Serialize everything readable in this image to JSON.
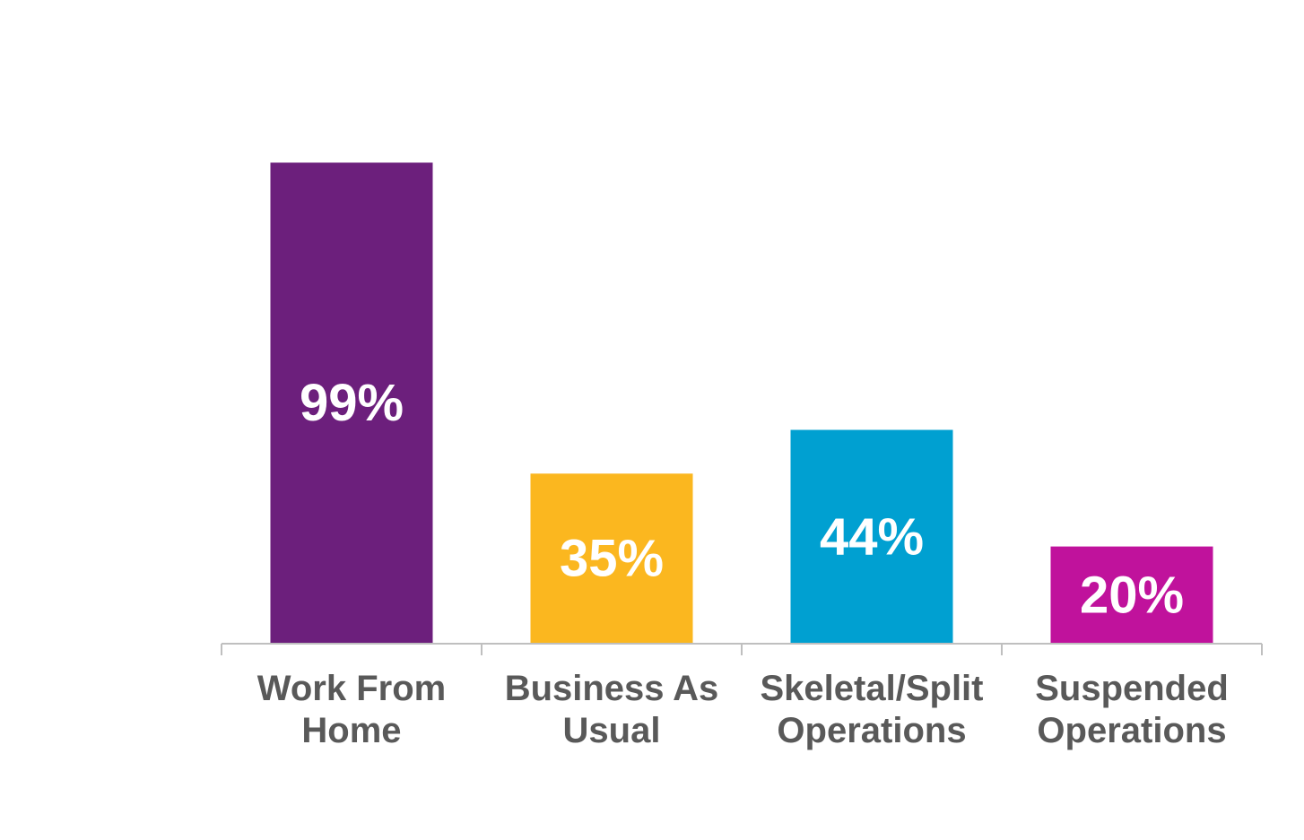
{
  "chart_data": {
    "type": "bar",
    "categories": [
      [
        "Work From",
        "Home"
      ],
      [
        "Business As",
        "Usual"
      ],
      [
        "Skeletal/Split",
        "Operations"
      ],
      [
        "Suspended",
        "Operations"
      ]
    ],
    "values": [
      99,
      35,
      44,
      20
    ],
    "data_labels": [
      "99%",
      "35%",
      "44%",
      "20%"
    ],
    "colors": [
      "#6c1f7c",
      "#fbb71f",
      "#00a0d1",
      "#c0129c"
    ],
    "ylim": [
      0,
      100
    ],
    "grid": false,
    "legend": "none",
    "title": "",
    "xlabel": "",
    "ylabel": ""
  }
}
